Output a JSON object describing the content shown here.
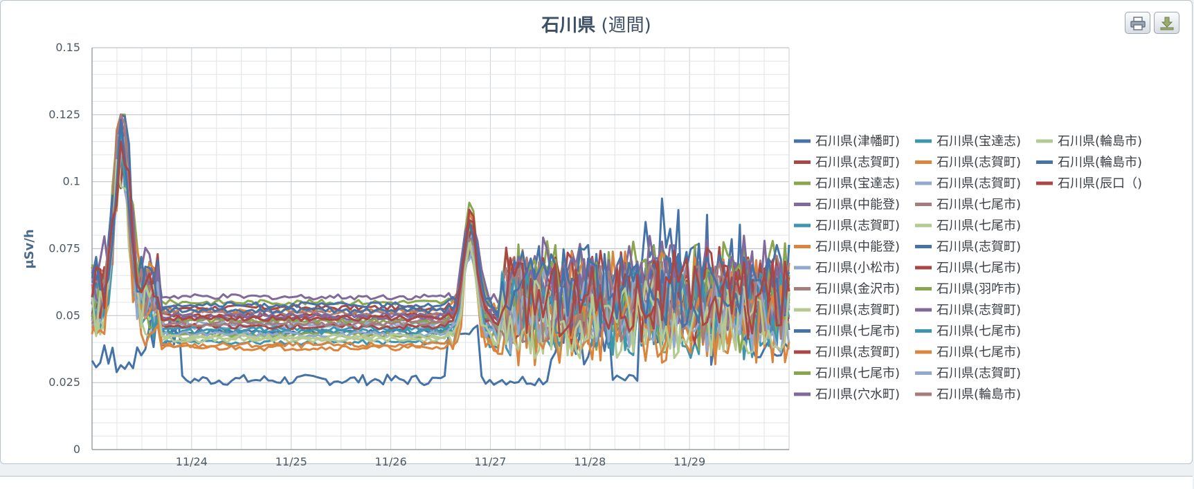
{
  "title_main": "石川県",
  "title_sub": "(週間)",
  "toolbar": {
    "print_icon": "printer-icon",
    "download_icon": "download-icon"
  },
  "chart_data": {
    "type": "line",
    "title": "石川県 (週間)",
    "ylabel": "μSv/h",
    "xlabel": "",
    "ylim": [
      0,
      0.15
    ],
    "yticks": [
      0,
      0.025,
      0.05,
      0.075,
      0.1,
      0.125,
      0.15
    ],
    "ytick_labels": [
      "0",
      "0.025",
      "0.05",
      "0.075",
      "0.1",
      "0.125",
      "0.15"
    ],
    "xlim": [
      23.0,
      30.0
    ],
    "xtick_labels": [
      "11/24",
      "11/25",
      "11/26",
      "11/27",
      "11/28",
      "11/29"
    ],
    "xticks": [
      24,
      25,
      26,
      27,
      28,
      29
    ],
    "grid": true,
    "legend_position": "right",
    "series": [
      {
        "name": "石川県(津幡町)",
        "color": "#4572a7",
        "pattern": "low",
        "base": 0.026
      },
      {
        "name": "石川県(志賀町)",
        "color": "#aa4643",
        "pattern": "mid",
        "base": 0.05
      },
      {
        "name": "石川県(宝達志)",
        "color": "#89a54e",
        "pattern": "mid",
        "base": 0.055
      },
      {
        "name": "石川県(中能登)",
        "color": "#80699b",
        "pattern": "mid",
        "base": 0.057
      },
      {
        "name": "石川県(志賀町)",
        "color": "#3d96ae",
        "pattern": "mid",
        "base": 0.04
      },
      {
        "name": "石川県(中能登)",
        "color": "#db843d",
        "pattern": "mid",
        "base": 0.052
      },
      {
        "name": "石川県(小松市)",
        "color": "#92a8cd",
        "pattern": "mid",
        "base": 0.046
      },
      {
        "name": "石川県(金沢市)",
        "color": "#a47d7c",
        "pattern": "mid",
        "base": 0.048
      },
      {
        "name": "石川県(志賀町)",
        "color": "#b5ca92",
        "pattern": "mid",
        "base": 0.042
      },
      {
        "name": "石川県(七尾市)",
        "color": "#4572a7",
        "pattern": "mid",
        "base": 0.044
      },
      {
        "name": "石川県(志賀町)",
        "color": "#aa4643",
        "pattern": "mid",
        "base": 0.053
      },
      {
        "name": "石川県(七尾市)",
        "color": "#89a54e",
        "pattern": "mid",
        "base": 0.043
      },
      {
        "name": "石川県(穴水町)",
        "color": "#80699b",
        "pattern": "mid",
        "base": 0.049
      },
      {
        "name": "石川県(宝達志)",
        "color": "#3d96ae",
        "pattern": "mid",
        "base": 0.045
      },
      {
        "name": "石川県(志賀町)",
        "color": "#db843d",
        "pattern": "mid",
        "base": 0.038
      },
      {
        "name": "石川県(志賀町)",
        "color": "#92a8cd",
        "pattern": "mid",
        "base": 0.047
      },
      {
        "name": "石川県(七尾市)",
        "color": "#a47d7c",
        "pattern": "mid",
        "base": 0.051
      },
      {
        "name": "石川県(七尾市)",
        "color": "#b5ca92",
        "pattern": "mid",
        "base": 0.041
      },
      {
        "name": "石川県(志賀町)",
        "color": "#4572a7",
        "pattern": "mid",
        "base": 0.054
      },
      {
        "name": "石川県(七尾市)",
        "color": "#aa4643",
        "pattern": "mid",
        "base": 0.046
      },
      {
        "name": "石川県(羽咋市)",
        "color": "#89a54e",
        "pattern": "mid",
        "base": 0.048
      },
      {
        "name": "石川県(志賀町)",
        "color": "#80699b",
        "pattern": "mid",
        "base": 0.05
      },
      {
        "name": "石川県(七尾市)",
        "color": "#3d96ae",
        "pattern": "mid",
        "base": 0.044
      },
      {
        "name": "石川県(七尾市)",
        "color": "#db843d",
        "pattern": "mid",
        "base": 0.039
      },
      {
        "name": "石川県(志賀町)",
        "color": "#92a8cd",
        "pattern": "mid",
        "base": 0.043
      },
      {
        "name": "石川県(輪島市)",
        "color": "#a47d7c",
        "pattern": "mid",
        "base": 0.047
      },
      {
        "name": "石川県(輪島市)",
        "color": "#b5ca92",
        "pattern": "mid",
        "base": 0.042
      },
      {
        "name": "石川県(輪島市)",
        "color": "#4572a7",
        "pattern": "mid",
        "base": 0.052
      },
      {
        "name": "石川県(辰口（)",
        "color": "#aa4643",
        "pattern": "mid",
        "base": 0.049
      }
    ]
  }
}
